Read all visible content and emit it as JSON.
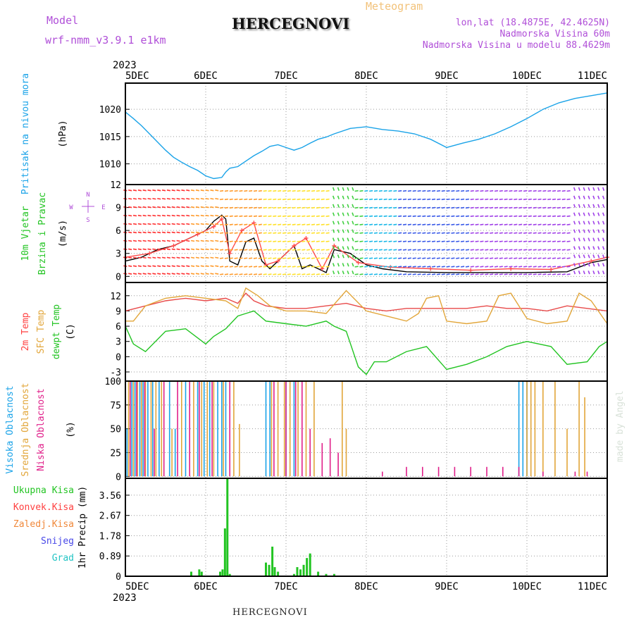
{
  "header": {
    "model_label": "Model",
    "model_name": "wrf-nmm_v3.9.1  e1km",
    "city": "HERCEGNOVI",
    "product": "Meteogram",
    "lonlat": "lon,lat (18.4875E, 42.4625N)",
    "altitude": "Nadmorska Visina 60m",
    "model_altitude": "Nadmorska Visina u modelu 88.4629m"
  },
  "footer": {
    "city": "HERCEGNOVI",
    "signature": "made by Angel"
  },
  "time_axis": {
    "year": "2023",
    "ticks": [
      "5DEC",
      "6DEC",
      "7DEC",
      "8DEC",
      "9DEC",
      "10DEC",
      "11DEC"
    ],
    "days": [
      0,
      1,
      2,
      3,
      4,
      5,
      6
    ]
  },
  "chart_data": [
    {
      "type": "line",
      "panel": "pressure",
      "ylabel": [
        "Pritisak na nivou mora",
        "(hPa)"
      ],
      "ylabel_colors": [
        "#1aa3e8",
        "#000000"
      ],
      "yticks": [
        1010,
        1015,
        1020
      ],
      "ylim": [
        1006.2,
        1024.8
      ],
      "series": [
        {
          "color": "#1aa3e8",
          "x": [
            0,
            0.1,
            0.2,
            0.3,
            0.4,
            0.5,
            0.6,
            0.7,
            0.8,
            0.9,
            1.0,
            1.1,
            1.2,
            1.25,
            1.3,
            1.4,
            1.5,
            1.6,
            1.7,
            1.8,
            1.9,
            2.0,
            2.1,
            2.2,
            2.3,
            2.4,
            2.5,
            2.6,
            2.8,
            3.0,
            3.2,
            3.4,
            3.6,
            3.8,
            4.0,
            4.2,
            4.4,
            4.6,
            4.8,
            5.0,
            5.2,
            5.4,
            5.6,
            5.8,
            6.0
          ],
          "y": [
            1019.5,
            1018.3,
            1017.0,
            1015.5,
            1014.0,
            1012.5,
            1011.2,
            1010.3,
            1009.5,
            1008.8,
            1007.8,
            1007.3,
            1007.5,
            1008.5,
            1009.2,
            1009.5,
            1010.5,
            1011.5,
            1012.3,
            1013.2,
            1013.5,
            1013.0,
            1012.5,
            1013.0,
            1013.8,
            1014.5,
            1014.9,
            1015.5,
            1016.5,
            1016.8,
            1016.3,
            1016.0,
            1015.5,
            1014.5,
            1013.0,
            1013.8,
            1014.5,
            1015.5,
            1016.8,
            1018.3,
            1020.0,
            1021.2,
            1022.0,
            1022.5,
            1023.0
          ]
        }
      ]
    },
    {
      "type": "line",
      "panel": "wind",
      "ylabel": [
        "10m Vjetar",
        "Brzina i Pravac",
        "(m/s)"
      ],
      "ylabel_colors": [
        "#22c422",
        "#22c422",
        "#000000"
      ],
      "yticks": [
        0,
        3,
        6,
        9,
        12
      ],
      "ylim": [
        -0.8,
        12
      ],
      "compass": "N S E W",
      "series": [
        {
          "name": "speed",
          "color": "#000000",
          "x": [
            0,
            0.2,
            0.4,
            0.6,
            0.8,
            1.0,
            1.1,
            1.2,
            1.25,
            1.3,
            1.4,
            1.5,
            1.6,
            1.7,
            1.8,
            2.0,
            2.1,
            2.2,
            2.3,
            2.4,
            2.5,
            2.6,
            2.8,
            3.0,
            3.2,
            3.5,
            4.0,
            4.5,
            5.0,
            5.5,
            5.8,
            6.0
          ],
          "y": [
            2,
            2.5,
            3.5,
            4,
            5,
            6,
            7.2,
            8,
            7.5,
            2,
            1.5,
            4.5,
            5,
            2,
            1,
            3,
            4,
            1,
            1.5,
            1,
            0.5,
            3.5,
            3,
            1.5,
            1,
            0.6,
            0.5,
            0.5,
            0.5,
            0.6,
            1.8,
            2.2
          ]
        },
        {
          "name": "gust",
          "color": "#ff4b4b",
          "x": [
            0,
            0.3,
            0.6,
            0.9,
            1.1,
            1.2,
            1.3,
            1.45,
            1.6,
            1.75,
            1.9,
            2.1,
            2.25,
            2.45,
            2.6,
            2.9,
            3.3,
            3.8,
            4.3,
            4.8,
            5.3,
            5.8,
            6.0
          ],
          "y": [
            2.5,
            3,
            4,
            5.5,
            6.5,
            7.5,
            3,
            6,
            7,
            1.5,
            2,
            4,
            5,
            1,
            4,
            1.8,
            1.2,
            1.0,
            0.8,
            1.0,
            0.9,
            2,
            2.5
          ]
        }
      ]
    },
    {
      "type": "line",
      "panel": "temperature",
      "ylabel": [
        "2m Temp",
        "SFC Temp",
        "dewpt Temp",
        "(C)"
      ],
      "ylabel_colors": [
        "#ff4040",
        "#e2a63a",
        "#22c422",
        "#000000"
      ],
      "yticks": [
        -3,
        0,
        3,
        6,
        9,
        12
      ],
      "ylim": [
        -4.8,
        14.6
      ],
      "series": [
        {
          "name": "2m Temp",
          "color": "#e84a4a",
          "x": [
            0,
            0.25,
            0.5,
            0.75,
            1.0,
            1.25,
            1.4,
            1.5,
            1.6,
            1.75,
            2.0,
            2.25,
            2.5,
            2.75,
            3.0,
            3.25,
            3.5,
            3.75,
            4.0,
            4.25,
            4.5,
            4.75,
            5.0,
            5.25,
            5.5,
            5.75,
            6.0
          ],
          "y": [
            9,
            10,
            11,
            11.5,
            11,
            11.5,
            10.5,
            12.5,
            11,
            10,
            9.5,
            9.5,
            10,
            10.5,
            9.5,
            9,
            9.5,
            9.5,
            9.5,
            9.5,
            10,
            9.5,
            9.5,
            9,
            10,
            9.5,
            9
          ]
        },
        {
          "name": "SFC Temp",
          "color": "#e2a63a",
          "x": [
            0,
            0.1,
            0.25,
            0.5,
            0.75,
            1.0,
            1.25,
            1.4,
            1.5,
            1.65,
            1.8,
            2.0,
            2.25,
            2.5,
            2.75,
            3.0,
            3.25,
            3.5,
            3.65,
            3.75,
            3.9,
            4.0,
            4.25,
            4.5,
            4.65,
            4.8,
            5.0,
            5.25,
            5.5,
            5.65,
            5.8,
            6.0
          ],
          "y": [
            7,
            7,
            10,
            11.5,
            12,
            11.5,
            11,
            9.5,
            13.5,
            12,
            10,
            9,
            9,
            8.5,
            13,
            9,
            8,
            7,
            8.5,
            11.5,
            12,
            7,
            6.5,
            7,
            12,
            12.5,
            7.5,
            6.5,
            7,
            12.5,
            11,
            6.5
          ]
        },
        {
          "name": "dewpt Temp",
          "color": "#22c422",
          "x": [
            0,
            0.1,
            0.25,
            0.5,
            0.75,
            1.0,
            1.1,
            1.25,
            1.4,
            1.5,
            1.6,
            1.75,
            2.0,
            2.25,
            2.5,
            2.6,
            2.75,
            2.9,
            3.0,
            3.1,
            3.25,
            3.5,
            3.75,
            4.0,
            4.25,
            4.5,
            4.75,
            5.0,
            5.15,
            5.3,
            5.5,
            5.75,
            5.9,
            6.0
          ],
          "y": [
            6,
            2.5,
            1,
            5,
            5.5,
            2.5,
            4,
            5.5,
            8,
            8.5,
            9,
            7,
            6.5,
            6,
            7,
            6,
            5,
            -2,
            -3.5,
            -1,
            -1,
            1,
            2,
            -2.5,
            -1.5,
            0,
            2,
            3,
            2.5,
            2,
            -1.5,
            -1,
            2,
            3
          ]
        }
      ]
    },
    {
      "type": "bar",
      "panel": "cloud",
      "ylabel": [
        "Visoka Oblacnost",
        "Srednja Oblacnost",
        "Niska Oblacnost",
        "(%)"
      ],
      "ylabel_colors": [
        "#1aa3e8",
        "#e2a63a",
        "#e0208a",
        "#000000"
      ],
      "yticks": [
        0,
        25,
        50,
        75,
        100
      ],
      "ylim": [
        -2,
        100
      ],
      "series": [
        {
          "name": "high",
          "color": "#1aa3e8",
          "x": [
            0.02,
            0.08,
            0.12,
            0.18,
            0.22,
            0.28,
            0.34,
            0.42,
            0.55,
            0.62,
            0.75,
            0.9,
            0.98,
            1.05,
            1.15,
            1.2,
            1.25,
            1.75,
            1.8,
            2.0,
            2.1,
            4.9,
            4.95,
            5.0
          ],
          "y": [
            50,
            100,
            100,
            100,
            100,
            100,
            100,
            100,
            100,
            50,
            100,
            100,
            100,
            100,
            100,
            100,
            100,
            100,
            100,
            100,
            100,
            100,
            100,
            100
          ]
        },
        {
          "name": "mid",
          "color": "#e2a63a",
          "x": [
            0.04,
            0.1,
            0.15,
            0.2,
            0.25,
            0.32,
            0.38,
            0.45,
            0.58,
            0.7,
            0.85,
            0.95,
            1.02,
            1.1,
            1.22,
            1.35,
            1.42,
            1.82,
            1.9,
            1.98,
            2.05,
            2.15,
            2.25,
            2.35,
            2.7,
            2.75,
            5.0,
            5.05,
            5.1,
            5.2,
            5.35,
            5.5,
            5.65,
            5.72
          ],
          "y": [
            100,
            100,
            100,
            100,
            100,
            100,
            100,
            100,
            50,
            100,
            100,
            100,
            100,
            100,
            100,
            100,
            55,
            100,
            100,
            100,
            100,
            100,
            100,
            100,
            100,
            50,
            100,
            100,
            100,
            100,
            100,
            50,
            100,
            83
          ]
        },
        {
          "name": "low",
          "color": "#e0208a",
          "x": [
            0.06,
            0.14,
            0.24,
            0.36,
            0.48,
            0.65,
            0.8,
            0.92,
            1.08,
            1.3,
            1.85,
            2.0,
            2.12,
            2.2,
            2.3,
            2.45,
            2.55,
            2.65,
            3.2,
            3.5,
            3.7,
            3.9,
            4.1,
            4.3,
            4.5,
            4.7,
            4.9,
            5.2,
            5.6,
            5.75
          ],
          "y": [
            100,
            100,
            100,
            50,
            100,
            100,
            100,
            100,
            100,
            100,
            100,
            100,
            100,
            100,
            50,
            35,
            40,
            25,
            5,
            10,
            10,
            10,
            10,
            10,
            10,
            10,
            10,
            5,
            5,
            5
          ]
        }
      ]
    },
    {
      "type": "bar",
      "panel": "precip",
      "ylabel": [
        "1hr Precip (mm)"
      ],
      "ylabel_colors": [
        "#000000"
      ],
      "legend": [
        {
          "label": "Ukupna Kisa",
          "color": "#22c422"
        },
        {
          "label": "Konvek.Kisa",
          "color": "#ff4040"
        },
        {
          "label": "Zaledj.Kisa",
          "color": "#f0883a"
        },
        {
          "label": "Snijeg",
          "color": "#4848e8"
        },
        {
          "label": "Grad",
          "color": "#22c4c4"
        }
      ],
      "yticks": [
        0,
        0.89,
        1.78,
        2.67,
        3.56
      ],
      "ytick_labels": [
        "0",
        "0.89",
        "1.78",
        "2.67",
        "3.56"
      ],
      "ylim": [
        0,
        4.3
      ],
      "series": [
        {
          "name": "Ukupna Kisa",
          "color": "#22c422",
          "x": [
            0.82,
            0.92,
            0.95,
            1.18,
            1.21,
            1.24,
            1.27,
            1.3,
            1.75,
            1.79,
            1.83,
            1.86,
            1.9,
            2.1,
            2.14,
            2.18,
            2.22,
            2.26,
            2.3,
            2.4,
            2.5,
            2.6
          ],
          "y": [
            0.2,
            0.3,
            0.2,
            0.2,
            0.3,
            2.1,
            4.3,
            0.1,
            0.6,
            0.5,
            1.3,
            0.4,
            0.2,
            0.1,
            0.4,
            0.3,
            0.5,
            0.8,
            1.0,
            0.2,
            0.1,
            0.1
          ]
        }
      ]
    }
  ]
}
